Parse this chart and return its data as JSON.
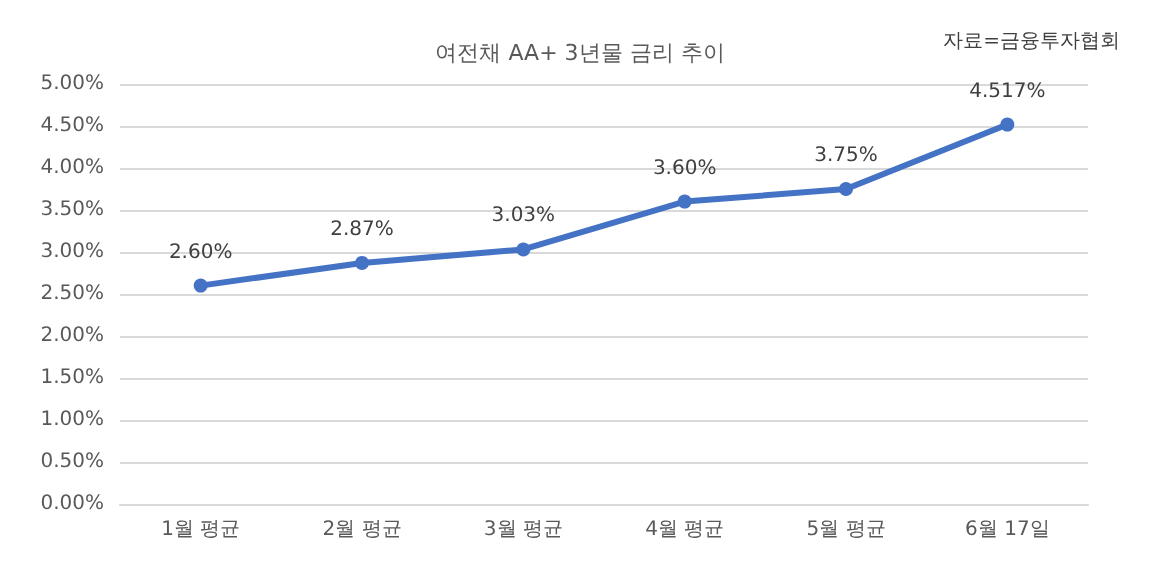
{
  "chart_data": {
    "type": "line",
    "title": "여전채 AA+ 3년물 금리 추이",
    "annotations": [
      "자료=금융투자협회"
    ],
    "categories": [
      "1월 평균",
      "2월 평균",
      "3월 평균",
      "4월 평균",
      "5월 평균",
      "6월 17일"
    ],
    "series": [
      {
        "color": "#4472c4",
        "values": [
          2.6,
          2.87,
          3.03,
          3.6,
          3.75,
          4.517
        ],
        "value_labels": [
          "2.60%",
          "2.87%",
          "3.03%",
          "3.60%",
          "3.75%",
          "4.517%"
        ]
      }
    ],
    "ylim": [
      0,
      5
    ],
    "yticks": [
      {
        "value": 0,
        "label": "0.00%"
      },
      {
        "value": 0.5,
        "label": "0.50%"
      },
      {
        "value": 1,
        "label": "1.00%"
      },
      {
        "value": 1.5,
        "label": "1.50%"
      },
      {
        "value": 2,
        "label": "2.00%"
      },
      {
        "value": 2.5,
        "label": "2.50%"
      },
      {
        "value": 3,
        "label": "3.00%"
      },
      {
        "value": 3.5,
        "label": "3.50%"
      },
      {
        "value": 4,
        "label": "4.00%"
      },
      {
        "value": 4.5,
        "label": "4.50%"
      },
      {
        "value": 5,
        "label": "5.00%"
      }
    ],
    "grid": "y",
    "marker": "circle",
    "line_style": "solid"
  }
}
